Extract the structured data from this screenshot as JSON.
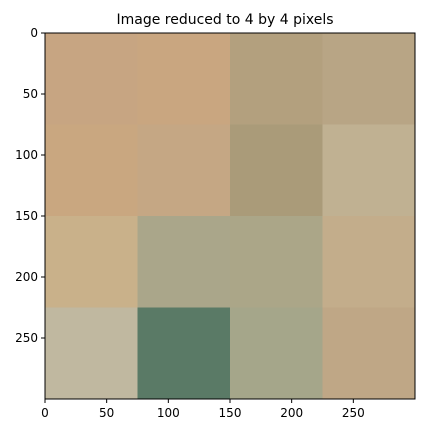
{
  "chart_data": {
    "type": "heatmap",
    "title": "Image reduced to 4 by 4 pixels",
    "xlabel": "",
    "ylabel": "",
    "grid_size": [
      4,
      4
    ],
    "cell_size": 75,
    "xlim": [
      0,
      300
    ],
    "ylim": [
      300,
      0
    ],
    "y_inverted": true,
    "grid": false,
    "x_ticks": [
      {
        "value": 0,
        "label": "0"
      },
      {
        "value": 50,
        "label": "50"
      },
      {
        "value": 100,
        "label": "100"
      },
      {
        "value": 150,
        "label": "150"
      },
      {
        "value": 200,
        "label": "200"
      },
      {
        "value": 250,
        "label": "250"
      }
    ],
    "y_ticks": [
      {
        "value": 0,
        "label": "0"
      },
      {
        "value": 50,
        "label": "50"
      },
      {
        "value": 100,
        "label": "100"
      },
      {
        "value": 150,
        "label": "150"
      },
      {
        "value": 200,
        "label": "200"
      },
      {
        "value": 250,
        "label": "250"
      }
    ],
    "cells": [
      [
        "#c7a582",
        "#c9a680",
        "#b3a07e",
        "#b8a585"
      ],
      [
        "#c9a780",
        "#c5a784",
        "#aa9b79",
        "#c0b192"
      ],
      [
        "#c9b18a",
        "#aaa68a",
        "#aba688",
        "#c3ad8b"
      ],
      [
        "#c0b8a0",
        "#5a7a66",
        "#a5a68a",
        "#bfa786"
      ]
    ]
  }
}
